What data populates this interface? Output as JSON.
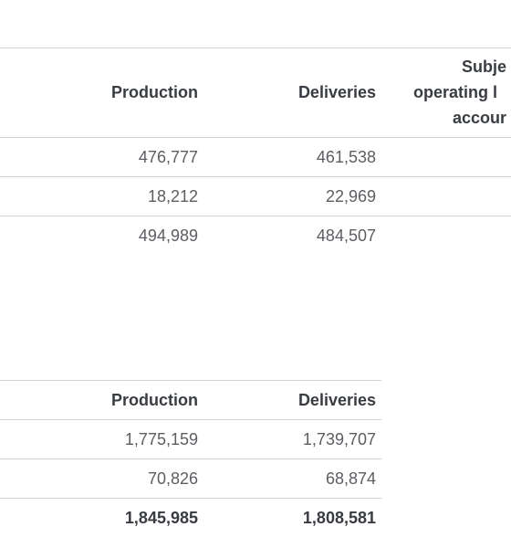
{
  "tables": [
    {
      "header": [
        "Production",
        "Deliveries"
      ],
      "extra_header": [
        "Subje",
        "operating l",
        "accour"
      ],
      "rows": [
        [
          "476,777",
          "461,538"
        ],
        [
          "18,212",
          "22,969"
        ],
        [
          "494,989",
          "484,507"
        ]
      ]
    },
    {
      "header": [
        "Production",
        "Deliveries"
      ],
      "rows": [
        [
          "1,775,159",
          "1,739,707"
        ],
        [
          "70,826",
          "68,874"
        ],
        [
          "1,845,985",
          "1,808,581"
        ]
      ]
    }
  ]
}
